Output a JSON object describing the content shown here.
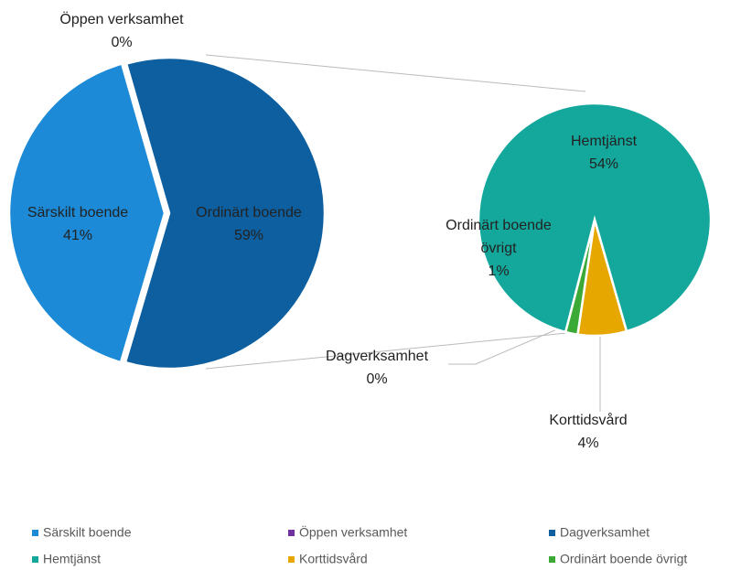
{
  "chart_data": {
    "type": "pie_of_pie",
    "primary": [
      {
        "name": "Särskilt boende",
        "value": 41,
        "value_label": "41%",
        "color": "#1c8ad6"
      },
      {
        "name": "Öppen verksamhet",
        "value": 0,
        "value_label": "0%",
        "color": "#7030a0"
      },
      {
        "name": "Ordinärt boende",
        "value": 59,
        "value_label": "59%",
        "color": "#0d5f9f"
      }
    ],
    "secondary": [
      {
        "name": "Korttidsvård",
        "value": 4,
        "value_label": "4%",
        "color": "#e6a700"
      },
      {
        "name": "Ordinärt boende övrigt",
        "value": 1,
        "value_label": "1%",
        "color": "#3aa935"
      },
      {
        "name": "Dagverksamhet",
        "value": 0,
        "value_label": "0%",
        "color": "#0d5f9f"
      },
      {
        "name": "Hemtjänst",
        "value": 54,
        "value_label": "54%",
        "color": "#14a89c"
      }
    ],
    "legend": "bottom"
  }
}
